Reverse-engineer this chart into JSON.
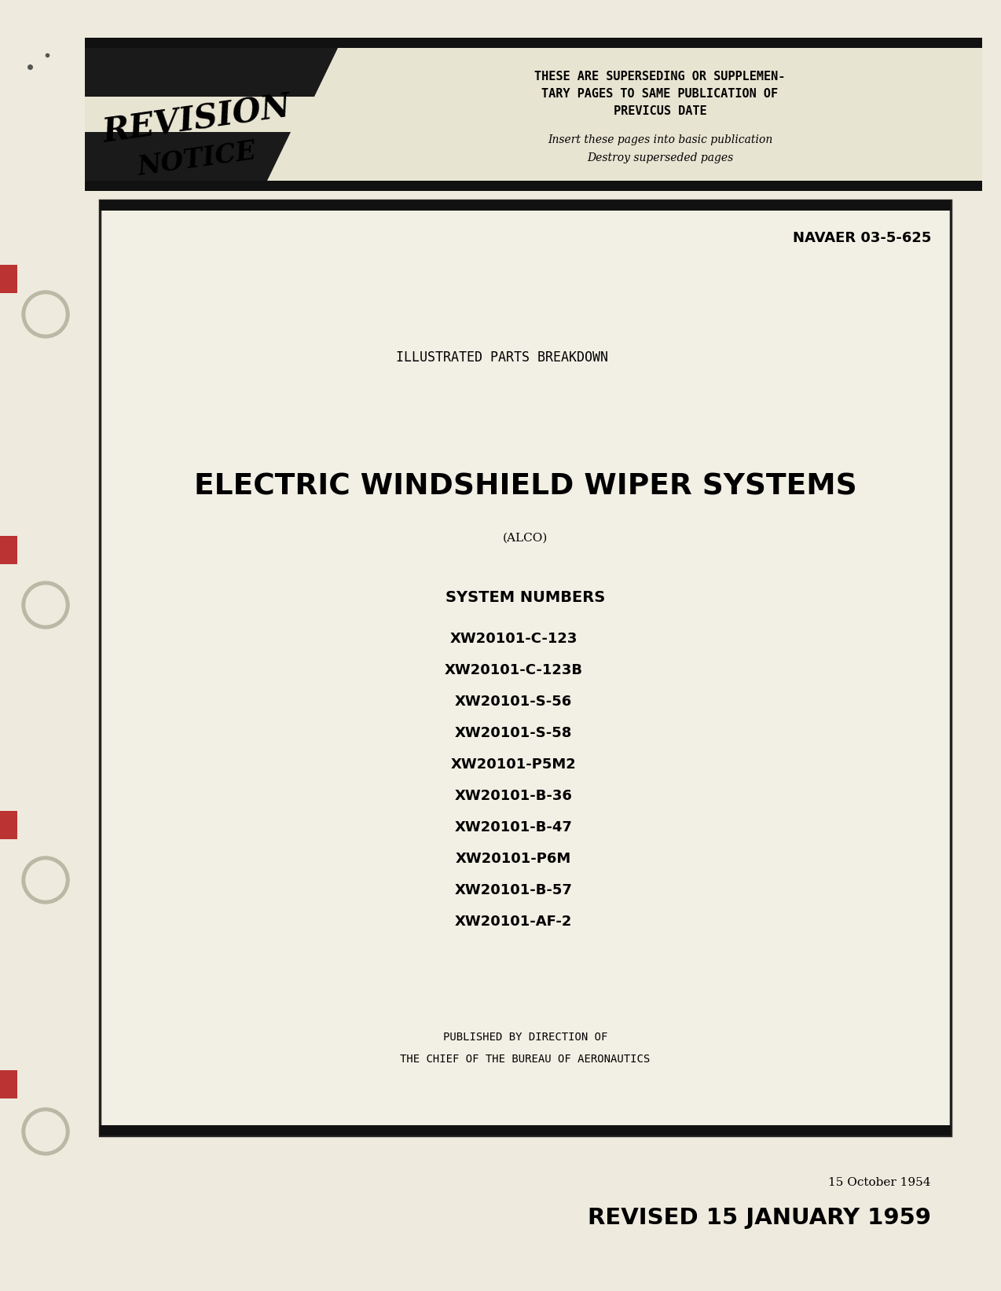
{
  "bg_color": "#eeeade",
  "page_bg": "#f0ede2",
  "doc_number": "NAVAER 03-5-625",
  "subtitle": "ILLUSTRATED PARTS BREAKDOWN",
  "main_title": "ELECTRIC WINDSHIELD WIPER SYSTEMS",
  "brand": "(ALCO)",
  "system_numbers_label": "SYSTEM NUMBERS",
  "system_numbers": [
    "XW20101-C-123",
    "XW20101-C-123B",
    "XW20101-S-56",
    "XW20101-S-58",
    "XW20101-P5M2",
    "XW20101-B-36",
    "XW20101-B-47",
    "XW20101-P6M",
    "XW20101-B-57",
    "XW20101-AF-2"
  ],
  "published_line1": "PUBLISHED BY DIRECTION OF",
  "published_line2": "THE CHIEF OF THE BUREAU OF AERONAUTICS",
  "date_line": "15 October 1954",
  "revised_line": "REVISED 15 JANUARY 1959",
  "revision_notice_line1": "THESE ARE SUPERSEDING OR SUPPLEMEN-",
  "revision_notice_line2": "TARY PAGES TO SAME PUBLICATION OF",
  "revision_notice_line3": "PREVICUS DATE",
  "revision_notice_line4": "Insert these pages into basic publication",
  "revision_notice_line5": "Destroy superseded pages"
}
